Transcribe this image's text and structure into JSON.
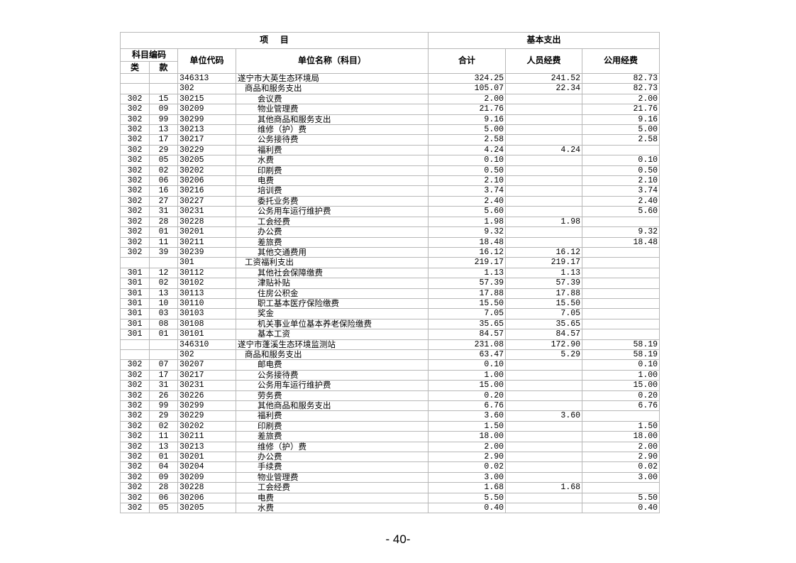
{
  "header": {
    "project": "项    目",
    "basic_expenditure": "基本支出",
    "subject_code": "科目编码",
    "class": "类",
    "section": "款",
    "unit_code": "单位代码",
    "unit_name": "单位名称（科目）",
    "total": "合计",
    "personnel": "人员经费",
    "public": "公用经费"
  },
  "rows": [
    {
      "lei": "",
      "kuan": "",
      "code": "346313",
      "name": "遂宁市大英生态环境局",
      "level": 0,
      "total": "324.25",
      "personnel": "241.52",
      "public": "82.73"
    },
    {
      "lei": "",
      "kuan": "",
      "code": "302",
      "name": "商品和服务支出",
      "level": 1,
      "total": "105.07",
      "personnel": "22.34",
      "public": "82.73"
    },
    {
      "lei": "302",
      "kuan": "15",
      "code": "30215",
      "name": "会议费",
      "level": 2,
      "total": "2.00",
      "personnel": "",
      "public": "2.00"
    },
    {
      "lei": "302",
      "kuan": "09",
      "code": "30209",
      "name": "物业管理费",
      "level": 2,
      "total": "21.76",
      "personnel": "",
      "public": "21.76"
    },
    {
      "lei": "302",
      "kuan": "99",
      "code": "30299",
      "name": "其他商品和服务支出",
      "level": 2,
      "total": "9.16",
      "personnel": "",
      "public": "9.16"
    },
    {
      "lei": "302",
      "kuan": "13",
      "code": "30213",
      "name": "维修（护）费",
      "level": 2,
      "total": "5.00",
      "personnel": "",
      "public": "5.00"
    },
    {
      "lei": "302",
      "kuan": "17",
      "code": "30217",
      "name": "公务接待费",
      "level": 2,
      "total": "2.58",
      "personnel": "",
      "public": "2.58"
    },
    {
      "lei": "302",
      "kuan": "29",
      "code": "30229",
      "name": "福利费",
      "level": 2,
      "total": "4.24",
      "personnel": "4.24",
      "public": ""
    },
    {
      "lei": "302",
      "kuan": "05",
      "code": "30205",
      "name": "水费",
      "level": 2,
      "total": "0.10",
      "personnel": "",
      "public": "0.10"
    },
    {
      "lei": "302",
      "kuan": "02",
      "code": "30202",
      "name": "印刷费",
      "level": 2,
      "total": "0.50",
      "personnel": "",
      "public": "0.50"
    },
    {
      "lei": "302",
      "kuan": "06",
      "code": "30206",
      "name": "电费",
      "level": 2,
      "total": "2.10",
      "personnel": "",
      "public": "2.10"
    },
    {
      "lei": "302",
      "kuan": "16",
      "code": "30216",
      "name": "培训费",
      "level": 2,
      "total": "3.74",
      "personnel": "",
      "public": "3.74"
    },
    {
      "lei": "302",
      "kuan": "27",
      "code": "30227",
      "name": "委托业务费",
      "level": 2,
      "total": "2.40",
      "personnel": "",
      "public": "2.40"
    },
    {
      "lei": "302",
      "kuan": "31",
      "code": "30231",
      "name": "公务用车运行维护费",
      "level": 2,
      "total": "5.60",
      "personnel": "",
      "public": "5.60"
    },
    {
      "lei": "302",
      "kuan": "28",
      "code": "30228",
      "name": "工会经费",
      "level": 2,
      "total": "1.98",
      "personnel": "1.98",
      "public": ""
    },
    {
      "lei": "302",
      "kuan": "01",
      "code": "30201",
      "name": "办公费",
      "level": 2,
      "total": "9.32",
      "personnel": "",
      "public": "9.32"
    },
    {
      "lei": "302",
      "kuan": "11",
      "code": "30211",
      "name": "差旅费",
      "level": 2,
      "total": "18.48",
      "personnel": "",
      "public": "18.48"
    },
    {
      "lei": "302",
      "kuan": "39",
      "code": "30239",
      "name": "其他交通费用",
      "level": 2,
      "total": "16.12",
      "personnel": "16.12",
      "public": ""
    },
    {
      "lei": "",
      "kuan": "",
      "code": "301",
      "name": "工资福利支出",
      "level": 1,
      "total": "219.17",
      "personnel": "219.17",
      "public": ""
    },
    {
      "lei": "301",
      "kuan": "12",
      "code": "30112",
      "name": "其他社会保障缴费",
      "level": 2,
      "total": "1.13",
      "personnel": "1.13",
      "public": ""
    },
    {
      "lei": "301",
      "kuan": "02",
      "code": "30102",
      "name": "津贴补贴",
      "level": 2,
      "total": "57.39",
      "personnel": "57.39",
      "public": ""
    },
    {
      "lei": "301",
      "kuan": "13",
      "code": "30113",
      "name": "住房公积金",
      "level": 2,
      "total": "17.88",
      "personnel": "17.88",
      "public": ""
    },
    {
      "lei": "301",
      "kuan": "10",
      "code": "30110",
      "name": "职工基本医疗保险缴费",
      "level": 2,
      "total": "15.50",
      "personnel": "15.50",
      "public": ""
    },
    {
      "lei": "301",
      "kuan": "03",
      "code": "30103",
      "name": "奖金",
      "level": 2,
      "total": "7.05",
      "personnel": "7.05",
      "public": ""
    },
    {
      "lei": "301",
      "kuan": "08",
      "code": "30108",
      "name": "机关事业单位基本养老保险缴费",
      "level": 2,
      "total": "35.65",
      "personnel": "35.65",
      "public": ""
    },
    {
      "lei": "301",
      "kuan": "01",
      "code": "30101",
      "name": "基本工资",
      "level": 2,
      "total": "84.57",
      "personnel": "84.57",
      "public": ""
    },
    {
      "lei": "",
      "kuan": "",
      "code": "346310",
      "name": "遂宁市蓬溪生态环境监测站",
      "level": 0,
      "total": "231.08",
      "personnel": "172.90",
      "public": "58.19"
    },
    {
      "lei": "",
      "kuan": "",
      "code": "302",
      "name": "商品和服务支出",
      "level": 1,
      "total": "63.47",
      "personnel": "5.29",
      "public": "58.19"
    },
    {
      "lei": "302",
      "kuan": "07",
      "code": "30207",
      "name": "邮电费",
      "level": 2,
      "total": "0.10",
      "personnel": "",
      "public": "0.10"
    },
    {
      "lei": "302",
      "kuan": "17",
      "code": "30217",
      "name": "公务接待费",
      "level": 2,
      "total": "1.00",
      "personnel": "",
      "public": "1.00"
    },
    {
      "lei": "302",
      "kuan": "31",
      "code": "30231",
      "name": "公务用车运行维护费",
      "level": 2,
      "total": "15.00",
      "personnel": "",
      "public": "15.00"
    },
    {
      "lei": "302",
      "kuan": "26",
      "code": "30226",
      "name": "劳务费",
      "level": 2,
      "total": "0.20",
      "personnel": "",
      "public": "0.20"
    },
    {
      "lei": "302",
      "kuan": "99",
      "code": "30299",
      "name": "其他商品和服务支出",
      "level": 2,
      "total": "6.76",
      "personnel": "",
      "public": "6.76"
    },
    {
      "lei": "302",
      "kuan": "29",
      "code": "30229",
      "name": "福利费",
      "level": 2,
      "total": "3.60",
      "personnel": "3.60",
      "public": ""
    },
    {
      "lei": "302",
      "kuan": "02",
      "code": "30202",
      "name": "印刷费",
      "level": 2,
      "total": "1.50",
      "personnel": "",
      "public": "1.50"
    },
    {
      "lei": "302",
      "kuan": "11",
      "code": "30211",
      "name": "差旅费",
      "level": 2,
      "total": "18.00",
      "personnel": "",
      "public": "18.00"
    },
    {
      "lei": "302",
      "kuan": "13",
      "code": "30213",
      "name": "维修（护）费",
      "level": 2,
      "total": "2.00",
      "personnel": "",
      "public": "2.00"
    },
    {
      "lei": "302",
      "kuan": "01",
      "code": "30201",
      "name": "办公费",
      "level": 2,
      "total": "2.90",
      "personnel": "",
      "public": "2.90"
    },
    {
      "lei": "302",
      "kuan": "04",
      "code": "30204",
      "name": "手续费",
      "level": 2,
      "total": "0.02",
      "personnel": "",
      "public": "0.02"
    },
    {
      "lei": "302",
      "kuan": "09",
      "code": "30209",
      "name": "物业管理费",
      "level": 2,
      "total": "3.00",
      "personnel": "",
      "public": "3.00"
    },
    {
      "lei": "302",
      "kuan": "28",
      "code": "30228",
      "name": "工会经费",
      "level": 2,
      "total": "1.68",
      "personnel": "1.68",
      "public": ""
    },
    {
      "lei": "302",
      "kuan": "06",
      "code": "30206",
      "name": "电费",
      "level": 2,
      "total": "5.50",
      "personnel": "",
      "public": "5.50"
    },
    {
      "lei": "302",
      "kuan": "05",
      "code": "30205",
      "name": "水费",
      "level": 2,
      "total": "0.40",
      "personnel": "",
      "public": "0.40"
    }
  ],
  "page_number": "- 40-"
}
